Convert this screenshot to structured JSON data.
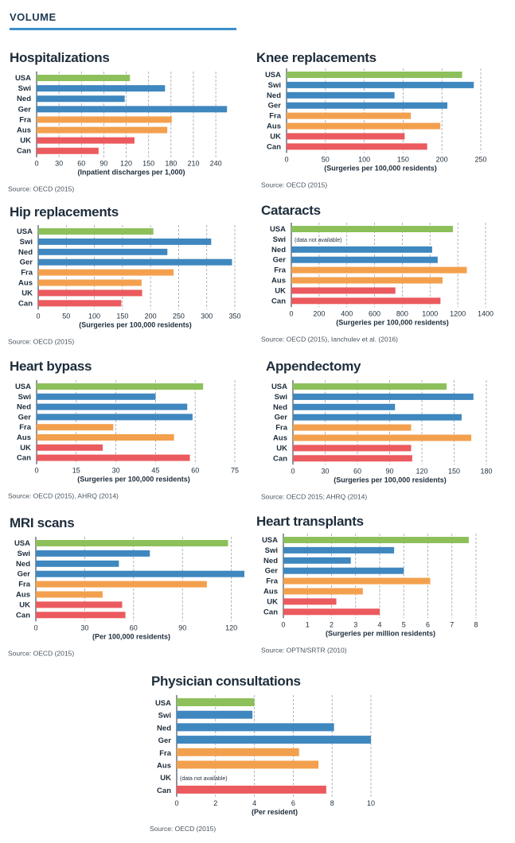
{
  "section_label": "VOLUME",
  "colors": {
    "green": "#8dc05b",
    "blue": "#3f87bf",
    "orange": "#f3a04e",
    "red": "#eb5a5e",
    "rule": "#3a8fc8"
  },
  "chart_data": [
    {
      "type": "bar",
      "title": "Hospitalizations",
      "categories": [
        "USA",
        "Swi",
        "Ned",
        "Ger",
        "Fra",
        "Aus",
        "UK",
        "Can"
      ],
      "values": [
        125,
        172,
        118,
        255,
        181,
        175,
        131,
        83
      ],
      "xlabel": "(Inpatient discharges per 1,000)",
      "xlim": [
        0,
        258
      ],
      "xticks": [
        0,
        30,
        60,
        90,
        120,
        150,
        180,
        210,
        240
      ],
      "source": "Source: OECD (2015)"
    },
    {
      "type": "bar",
      "title": "Knee replacements",
      "categories": [
        "USA",
        "Swi",
        "Ned",
        "Ger",
        "Fra",
        "Aus",
        "UK",
        "Can"
      ],
      "values": [
        226,
        241,
        139,
        207,
        160,
        198,
        152,
        181
      ],
      "xlabel": "(Surgeries per 100,000 residents)",
      "xlim": [
        0,
        250
      ],
      "xticks": [
        0,
        50,
        100,
        150,
        200,
        250
      ],
      "source": "Source: OECD (2015)"
    },
    {
      "type": "bar",
      "title": "Hip replacements",
      "categories": [
        "USA",
        "Swi",
        "Ned",
        "Ger",
        "Fra",
        "Aus",
        "UK",
        "Can"
      ],
      "values": [
        205,
        308,
        230,
        345,
        241,
        184,
        185,
        148
      ],
      "xlabel": "(Surgeries per 100,000 residents)",
      "xlim": [
        0,
        350
      ],
      "xticks": [
        0,
        50,
        100,
        150,
        200,
        250,
        300,
        350
      ],
      "source": "Source: OECD (2015)"
    },
    {
      "type": "bar",
      "title": "Cataracts",
      "categories": [
        "USA",
        "Swi",
        "Ned",
        "Ger",
        "Fra",
        "Aus",
        "UK",
        "Can"
      ],
      "values": [
        1165,
        null,
        1015,
        1055,
        1265,
        1090,
        750,
        1075
      ],
      "na_label": "(data not available)",
      "xlabel": "(Surgeries per 100,000 residents)",
      "xlim": [
        0,
        1400
      ],
      "xticks": [
        0,
        200,
        400,
        600,
        800,
        1000,
        1200,
        1400
      ],
      "source": "Source: OECD (2015), Ianchulev et al. (2016)"
    },
    {
      "type": "bar",
      "title": "Heart bypass",
      "categories": [
        "USA",
        "Swi",
        "Ned",
        "Ger",
        "Fra",
        "Aus",
        "UK",
        "Can"
      ],
      "values": [
        63,
        45,
        57,
        59,
        29,
        52,
        25,
        58
      ],
      "xlabel": "(Surgeries per 100,000 residents)",
      "xlim": [
        0,
        75
      ],
      "xticks": [
        0,
        15,
        30,
        45,
        60,
        75
      ],
      "source": "Source: OECD (2015), AHRQ (2014)"
    },
    {
      "type": "bar",
      "title": "Appendectomy",
      "categories": [
        "USA",
        "Swi",
        "Ned",
        "Ger",
        "Fra",
        "Aus",
        "UK",
        "Can"
      ],
      "values": [
        143,
        168,
        95,
        157,
        110,
        166,
        110,
        111
      ],
      "xlabel": "(Surgeries per 100,000 residents)",
      "xlim": [
        0,
        180
      ],
      "xticks": [
        0,
        30,
        60,
        90,
        120,
        150,
        180
      ],
      "source": "Source: OECD 2015; AHRQ (2014)"
    },
    {
      "type": "bar",
      "title": "MRI scans",
      "categories": [
        "USA",
        "Swi",
        "Ned",
        "Ger",
        "Fra",
        "Aus",
        "UK",
        "Can"
      ],
      "values": [
        118,
        70,
        51,
        128,
        105,
        41,
        53,
        55
      ],
      "xlabel": "(Per 100,000 residents)",
      "xlim": [
        0,
        128
      ],
      "xticks": [
        0,
        30,
        60,
        90,
        120
      ],
      "source": "Source: OECD (2015)"
    },
    {
      "type": "bar",
      "title": "Heart transplants",
      "categories": [
        "USA",
        "Swi",
        "Ned",
        "Ger",
        "Fra",
        "Aus",
        "UK",
        "Can"
      ],
      "values": [
        7.7,
        4.6,
        2.8,
        5.0,
        6.1,
        3.3,
        2.2,
        4.0
      ],
      "xlabel": "(Surgeries per million residents)",
      "xlim": [
        0,
        8
      ],
      "xticks": [
        0,
        1,
        2,
        3,
        4,
        5,
        6,
        7,
        8
      ],
      "source": "Source: OPTN/SRTR (2010)"
    },
    {
      "type": "bar",
      "title": "Physician consultations",
      "categories": [
        "USA",
        "Swi",
        "Ned",
        "Ger",
        "Fra",
        "Aus",
        "UK",
        "Can"
      ],
      "values": [
        4.0,
        3.9,
        8.1,
        10.0,
        6.3,
        7.3,
        null,
        7.7
      ],
      "na_label": "(data not available)",
      "xlabel": "(Per resident)",
      "xlim": [
        0,
        10
      ],
      "xticks": [
        0,
        2,
        4,
        6,
        8,
        10
      ],
      "source": "Source: OECD (2015)"
    }
  ]
}
